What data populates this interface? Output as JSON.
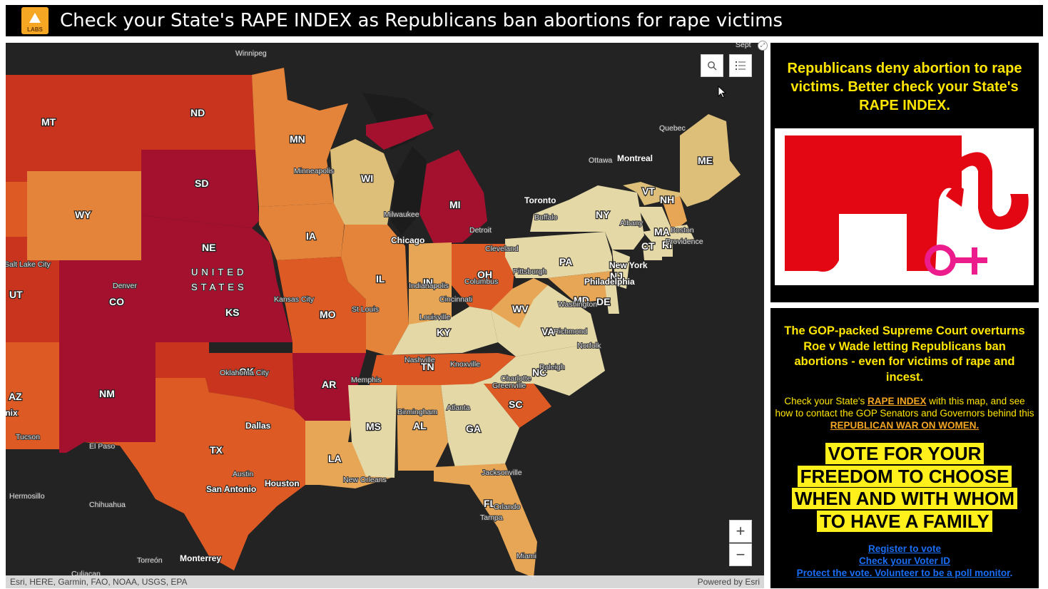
{
  "header": {
    "title": "Check your State's RAPE INDEX as Republicans ban abortions for rape victims",
    "logo_text": "LABS"
  },
  "map": {
    "country_label_1": "UNITED",
    "country_label_2": "STATES",
    "controls": {
      "search_icon": "search-icon",
      "legend_icon": "list-icon",
      "zoom_in": "+",
      "zoom_out": "−"
    },
    "attribution": "Esri, HERE, Garmin, FAO, NOAA, USGS, EPA",
    "powered_by": "Powered by Esri",
    "colors": {
      "very_high": "#a3112f",
      "high": "#c8341e",
      "mid_high": "#dd5a25",
      "mid": "#e4843a",
      "mid_low": "#e7a656",
      "low": "#ddbf7a",
      "lowest": "#e3d8a6",
      "background": "#232323"
    },
    "state_labels": [
      "MT",
      "ND",
      "SD",
      "WY",
      "NE",
      "CO",
      "UT",
      "KS",
      "NM",
      "AZ",
      "OK",
      "TX",
      "MN",
      "IA",
      "MO",
      "AR",
      "LA",
      "WI",
      "IL",
      "MI",
      "IN",
      "OH",
      "KY",
      "TN",
      "MS",
      "AL",
      "GA",
      "FL",
      "SC",
      "NC",
      "VA",
      "WV",
      "PA",
      "NY",
      "MD",
      "DE",
      "NJ",
      "CT",
      "RI",
      "MA",
      "VT",
      "NH",
      "ME"
    ],
    "cities": [
      "Winnipeg",
      "Quebec",
      "Ottawa",
      "Montreal",
      "Toronto",
      "Buffalo",
      "Albany",
      "Boston",
      "Providence",
      "Minneapolis",
      "Milwaukee",
      "Chicago",
      "Detroit",
      "Cleveland",
      "Pittsburgh",
      "New York",
      "Philadelphia",
      "Washington",
      "Richmond",
      "Norfolk",
      "Columbus",
      "Indianapolis",
      "Cincinnati",
      "Louisville",
      "St Louis",
      "Kansas City",
      "Denver",
      "Salt Lake City",
      "Oklahoma City",
      "Memphis",
      "Nashville",
      "Knoxville",
      "Charlotte",
      "Raleigh",
      "Greenville",
      "Atlanta",
      "Birmingham",
      "Dallas",
      "El Paso",
      "Austin",
      "Houston",
      "San Antonio",
      "New Orleans",
      "Jacksonville",
      "Orlando",
      "Tampa",
      "Miami",
      "Tucson",
      "Phoenix",
      "Hermosillo",
      "Chihuahua",
      "Torreón",
      "Monterrey",
      "Culiacan",
      "Sept"
    ]
  },
  "panel1": {
    "heading": "Republicans deny abortion to rape victims. Better check your State's RAPE INDEX."
  },
  "panel2": {
    "heading": "The GOP-packed Supreme Court overturns Roe v Wade letting Republicans ban abortions - even for victims of rape and incest.",
    "body_pre": "Check your State's ",
    "body_link1": "RAPE INDEX",
    "body_mid": " with this map, and see how to contact the GOP Senators and Governors behind this ",
    "body_link2": "REPUBLICAN WAR ON WOMEN.",
    "vote": "VOTE FOR YOUR FREEDOM TO CHOOSE WHEN AND WITH WHOM TO HAVE A FAMILY",
    "link_register": "Register to vote",
    "link_voter_id": "Check your Voter ID",
    "link_protect": "Protect the vote. Volunteer to be a poll monitor",
    "link_suffix": "."
  }
}
